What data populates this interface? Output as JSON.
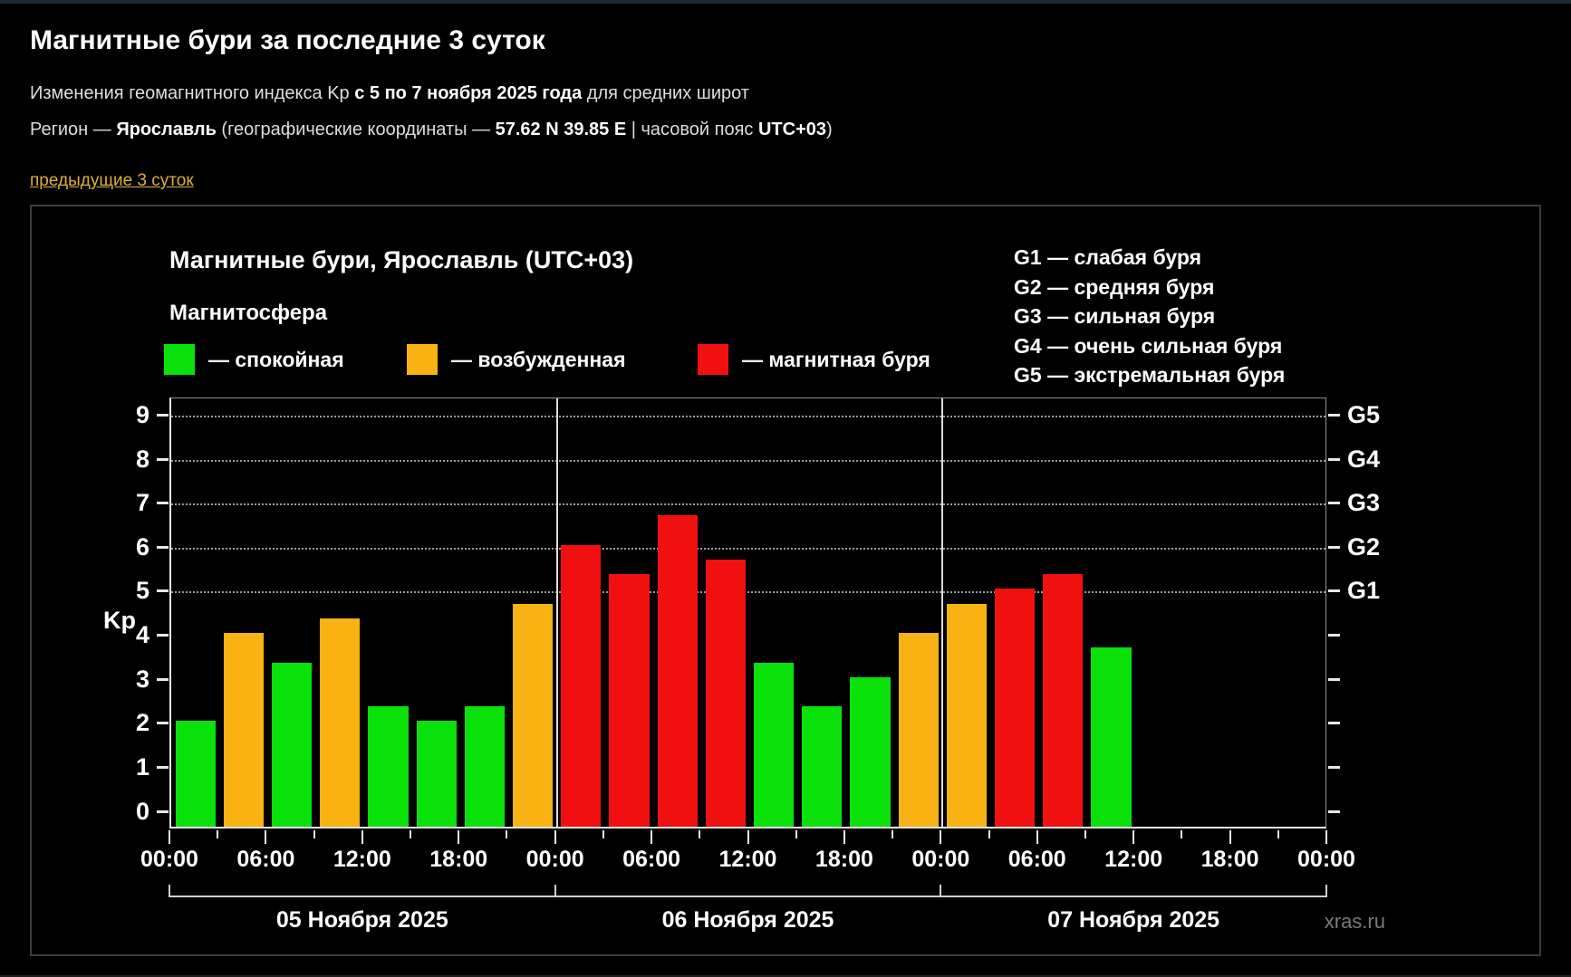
{
  "page": {
    "title": "Магнитные бури за последние 3 суток",
    "subtitle_prefix": "Изменения геомагнитного индекса Kp ",
    "subtitle_bold": "с 5 по 7 ноября 2025 года",
    "subtitle_suffix": " для средних широт",
    "region_prefix": "Регион — ",
    "region_name": "Ярославль",
    "region_mid1": " (географические координаты — ",
    "region_coords": "57.62 N 39.85 E",
    "region_mid2": " | часовой пояс ",
    "region_tz": "UTC+03",
    "region_suffix": ")",
    "prev_link": "предыдущие 3 суток",
    "watermark": "xras.ru"
  },
  "chart_data": {
    "type": "bar",
    "title": "Магнитные бури, Ярославль (UTC+03)",
    "legend_title": "Магнитосфера",
    "legend": [
      {
        "status": "quiet",
        "label": "— спокойная",
        "color": "#0ae00a"
      },
      {
        "status": "excited",
        "label": "— возбужденная",
        "color": "#f9b213"
      },
      {
        "status": "storm",
        "label": "— магнитная буря",
        "color": "#f01010"
      }
    ],
    "g_legend": [
      "G1 — слабая буря",
      "G2 — средняя буря",
      "G3 — сильная буря",
      "G4 — очень сильная буря",
      "G5 — экстремальная буря"
    ],
    "ylabel": "Kp",
    "ylim": [
      -0.4,
      9.39
    ],
    "y_ticks": [
      0,
      1,
      2,
      3,
      4,
      5,
      6,
      7,
      8,
      9
    ],
    "gridlines_at": [
      5,
      6,
      7,
      8,
      9
    ],
    "right_axis_labels": [
      {
        "kp": 5,
        "label": "G1"
      },
      {
        "kp": 6,
        "label": "G2"
      },
      {
        "kp": 7,
        "label": "G3"
      },
      {
        "kp": 8,
        "label": "G4"
      },
      {
        "kp": 9,
        "label": "G5"
      }
    ],
    "x_tick_labels": [
      "00:00",
      "06:00",
      "12:00",
      "18:00",
      "00:00",
      "06:00",
      "12:00",
      "18:00",
      "00:00",
      "06:00",
      "12:00",
      "18:00",
      "00:00"
    ],
    "bar_interval_hours": 3,
    "thresholds": {
      "quiet_below": 4,
      "storm_at_or_above": 5
    },
    "days": [
      {
        "date": "05 Ноября 2025",
        "kp": [
          2.0,
          4.0,
          3.33,
          4.33,
          2.33,
          2.0,
          2.33,
          4.67
        ]
      },
      {
        "date": "06 Ноября 2025",
        "kp": [
          6.0,
          5.33,
          6.67,
          5.67,
          3.33,
          2.33,
          3.0,
          4.0
        ]
      },
      {
        "date": "07 Ноября 2025",
        "kp": [
          4.67,
          5.0,
          5.33,
          3.67,
          null,
          null,
          null,
          null
        ]
      }
    ]
  }
}
